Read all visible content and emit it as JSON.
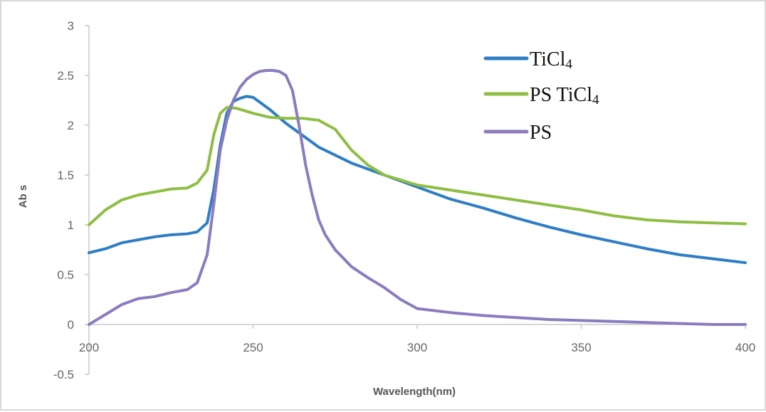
{
  "chart_data": {
    "type": "line",
    "title": "",
    "xlabel": "Wavelength(nm)",
    "ylabel": "Ab s",
    "xlim": [
      200,
      400
    ],
    "ylim": [
      -0.5,
      3
    ],
    "x_ticks": [
      200,
      250,
      300,
      350,
      400
    ],
    "x_tick_labels": [
      "200",
      "250",
      "300",
      "350",
      "400"
    ],
    "y_ticks": [
      3,
      2.5,
      2,
      1.5,
      1,
      0.5,
      0,
      -0.5
    ],
    "y_tick_labels": [
      "3",
      "2.5",
      "2",
      "1.5",
      "1",
      "0.5",
      "0",
      "-0.5"
    ],
    "grid": false,
    "legend_position": "top-right",
    "series": [
      {
        "name": "TiCl4",
        "legend_label_base": "TiCl",
        "legend_label_sub": "4",
        "color": "#2f7ec4",
        "x": [
          200,
          205,
          210,
          215,
          220,
          225,
          230,
          233,
          236,
          238,
          240,
          242,
          244,
          246,
          248,
          250,
          255,
          260,
          265,
          270,
          280,
          290,
          300,
          310,
          320,
          330,
          340,
          350,
          360,
          370,
          380,
          390,
          400
        ],
        "y": [
          0.72,
          0.76,
          0.82,
          0.85,
          0.88,
          0.9,
          0.91,
          0.93,
          1.02,
          1.35,
          1.8,
          2.12,
          2.24,
          2.27,
          2.29,
          2.28,
          2.16,
          2.02,
          1.9,
          1.78,
          1.62,
          1.5,
          1.38,
          1.26,
          1.17,
          1.07,
          0.98,
          0.9,
          0.83,
          0.76,
          0.7,
          0.66,
          0.62
        ]
      },
      {
        "name": "PS TiCl4",
        "legend_label_base": "PS TiCl",
        "legend_label_sub": "4",
        "color": "#8fbe44",
        "x": [
          200,
          205,
          210,
          215,
          220,
          225,
          230,
          233,
          236,
          238,
          240,
          242,
          245,
          250,
          255,
          260,
          265,
          270,
          275,
          280,
          285,
          290,
          300,
          310,
          320,
          330,
          340,
          350,
          360,
          370,
          380,
          390,
          400
        ],
        "y": [
          1.0,
          1.15,
          1.25,
          1.3,
          1.33,
          1.36,
          1.37,
          1.42,
          1.55,
          1.9,
          2.12,
          2.18,
          2.17,
          2.12,
          2.08,
          2.07,
          2.07,
          2.05,
          1.96,
          1.75,
          1.6,
          1.5,
          1.4,
          1.35,
          1.3,
          1.25,
          1.2,
          1.15,
          1.09,
          1.05,
          1.03,
          1.02,
          1.01
        ]
      },
      {
        "name": "PS",
        "legend_label_base": "PS",
        "legend_label_sub": "",
        "color": "#8c7bbf",
        "x": [
          200,
          205,
          210,
          215,
          220,
          225,
          230,
          233,
          236,
          238,
          240,
          242,
          244,
          246,
          248,
          250,
          252,
          254,
          256,
          258,
          260,
          262,
          264,
          266,
          268,
          270,
          272,
          275,
          280,
          285,
          290,
          295,
          300,
          310,
          320,
          330,
          340,
          350,
          360,
          370,
          380,
          390,
          400
        ],
        "y": [
          0.0,
          0.1,
          0.2,
          0.26,
          0.28,
          0.32,
          0.35,
          0.42,
          0.7,
          1.2,
          1.75,
          2.05,
          2.25,
          2.38,
          2.46,
          2.51,
          2.54,
          2.55,
          2.55,
          2.54,
          2.5,
          2.35,
          2.0,
          1.6,
          1.3,
          1.05,
          0.9,
          0.75,
          0.58,
          0.47,
          0.37,
          0.25,
          0.16,
          0.12,
          0.09,
          0.07,
          0.05,
          0.04,
          0.03,
          0.02,
          0.01,
          0.0,
          0.0
        ]
      }
    ]
  }
}
